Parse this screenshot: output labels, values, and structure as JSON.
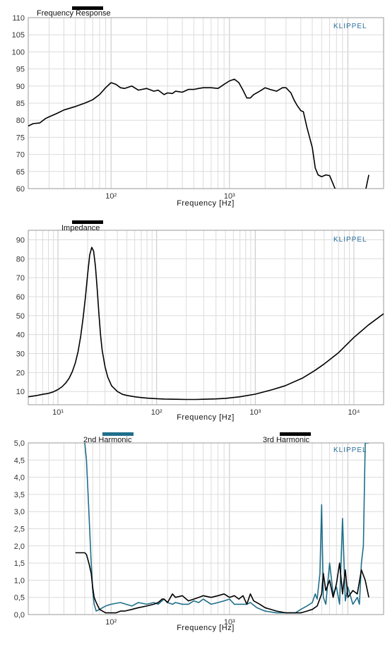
{
  "chart_data": [
    {
      "type": "line",
      "title": "Frequency Response",
      "brand": "KLIPPEL",
      "xlabel": "Frequency [Hz]",
      "ylabel": "",
      "xscale": "log",
      "xlim": [
        20,
        20000
      ],
      "ylim": [
        60,
        110
      ],
      "yticks": [
        "60",
        "65",
        "70",
        "75",
        "80",
        "85",
        "90",
        "95",
        "100",
        "105",
        "110"
      ],
      "xticks": [
        {
          "v": 100,
          "label": "10²"
        },
        {
          "v": 1000,
          "label": "10³"
        }
      ],
      "grid": true,
      "series": [
        {
          "color": "#000000",
          "x": [
            20,
            22,
            25,
            28,
            30,
            35,
            40,
            50,
            60,
            70,
            80,
            90,
            100,
            110,
            120,
            130,
            150,
            170,
            200,
            230,
            250,
            280,
            300,
            330,
            350,
            400,
            450,
            500,
            550,
            600,
            700,
            800,
            900,
            1000,
            1100,
            1200,
            1300,
            1400,
            1500,
            1600,
            1800,
            2000,
            2200,
            2500,
            2800,
            3000,
            3300,
            3500,
            3700,
            4000,
            4200,
            4500,
            5000,
            5300,
            5600,
            6000,
            6500,
            7000,
            8000,
            9000,
            10000,
            11000,
            12000,
            13000,
            14000,
            15000
          ],
          "y": [
            78.3,
            79,
            79.2,
            80.5,
            81,
            82,
            83,
            84,
            85,
            86,
            87.5,
            89.5,
            91,
            90.5,
            89.5,
            89.3,
            90,
            88.8,
            89.3,
            88.5,
            88.8,
            87.5,
            88,
            87.8,
            88.5,
            88.2,
            89,
            89,
            89.3,
            89.5,
            89.5,
            89.3,
            90.5,
            91.5,
            92,
            91,
            88.8,
            86.5,
            86.5,
            87.5,
            88.5,
            89.5,
            89,
            88.5,
            89.5,
            89.5,
            88,
            86,
            84.5,
            82.8,
            82.5,
            78,
            72,
            66,
            64,
            63.5,
            64,
            63.8,
            59,
            59,
            59,
            59,
            59,
            59,
            59,
            64
          ]
        }
      ]
    },
    {
      "type": "line",
      "title": "Impedance",
      "brand": "KLIPPEL",
      "xlabel": "Frequency [Hz]",
      "ylabel": "",
      "xscale": "log",
      "xlim": [
        5,
        20000
      ],
      "ylim": [
        3,
        95
      ],
      "yticks": [
        "10",
        "20",
        "30",
        "40",
        "50",
        "60",
        "70",
        "80",
        "90"
      ],
      "xticks": [
        {
          "v": 10,
          "label": "10¹"
        },
        {
          "v": 100,
          "label": "10²"
        },
        {
          "v": 1000,
          "label": "10³"
        },
        {
          "v": 10000,
          "label": "10⁴"
        }
      ],
      "grid": true,
      "series": [
        {
          "color": "#000000",
          "x": [
            5,
            6,
            7,
            8,
            9,
            10,
            11,
            12,
            13,
            14,
            15,
            16,
            17,
            18,
            19,
            20,
            21,
            22,
            23,
            24,
            25,
            26,
            27,
            28,
            30,
            32,
            35,
            40,
            45,
            50,
            60,
            70,
            80,
            100,
            120,
            150,
            200,
            250,
            300,
            400,
            500,
            700,
            1000,
            1500,
            2000,
            3000,
            4000,
            5000,
            7000,
            10000,
            14000,
            20000
          ],
          "y": [
            7.2,
            7.8,
            8.5,
            9,
            9.8,
            11,
            12.5,
            14.5,
            17,
            20.5,
            25,
            31,
            39,
            49,
            60,
            72,
            82,
            86,
            84,
            76,
            64,
            51,
            40,
            32,
            23,
            17.5,
            13,
            10,
            8.5,
            7.9,
            7.2,
            6.8,
            6.5,
            6.2,
            6,
            5.9,
            5.8,
            5.8,
            5.9,
            6.1,
            6.4,
            7.2,
            8.6,
            11,
            13,
            17,
            21,
            24.5,
            30.5,
            38.5,
            45,
            51
          ]
        }
      ]
    },
    {
      "type": "line",
      "title": "",
      "brand": "KLIPPEL",
      "xlabel": "Frequency [Hz]",
      "ylabel": "",
      "xscale": "log",
      "xlim": [
        20,
        20000
      ],
      "ylim": [
        0,
        5
      ],
      "yticks": [
        "0,0",
        "0,5",
        "1,0",
        "1,5",
        "2,0",
        "2,5",
        "3,0",
        "3,5",
        "4,0",
        "4,5",
        "5,0"
      ],
      "xticks": [
        {
          "v": 100,
          "label": "10²"
        },
        {
          "v": 1000,
          "label": "10³"
        }
      ],
      "grid": true,
      "series": [
        {
          "name": "2nd Harmonic",
          "color": "#1f6f8b",
          "x": [
            60,
            62,
            64,
            66,
            68,
            70,
            72,
            75,
            80,
            90,
            100,
            120,
            150,
            170,
            200,
            230,
            250,
            280,
            300,
            330,
            350,
            400,
            450,
            500,
            550,
            600,
            700,
            800,
            900,
            1000,
            1100,
            1200,
            1400,
            1500,
            1700,
            2000,
            2500,
            3000,
            3300,
            3600,
            4000,
            4500,
            5000,
            5300,
            5500,
            5800,
            6000,
            6200,
            6500,
            7000,
            7500,
            8000,
            8500,
            9000,
            9500,
            10000,
            11000,
            12000,
            12500,
            13000,
            13500,
            14000,
            15000
          ],
          "y": [
            5,
            4.5,
            3.5,
            2.5,
            1.5,
            0.7,
            0.3,
            0.1,
            0.15,
            0.25,
            0.3,
            0.35,
            0.25,
            0.35,
            0.3,
            0.35,
            0.3,
            0.45,
            0.35,
            0.3,
            0.35,
            0.3,
            0.3,
            0.4,
            0.35,
            0.45,
            0.3,
            0.35,
            0.4,
            0.45,
            0.3,
            0.3,
            0.3,
            0.35,
            0.2,
            0.1,
            0.05,
            0.05,
            0.05,
            0.05,
            0.15,
            0.25,
            0.35,
            0.6,
            0.45,
            1.2,
            3.2,
            0.5,
            0.3,
            1.5,
            0.6,
            0.8,
            0.3,
            2.8,
            0.4,
            0.8,
            0.3,
            0.5,
            0.3,
            1.5,
            2,
            5,
            5
          ]
        },
        {
          "name": "3rd Harmonic",
          "color": "#000000",
          "x": [
            50,
            55,
            60,
            62,
            65,
            68,
            70,
            72,
            75,
            80,
            90,
            100,
            110,
            120,
            130,
            150,
            170,
            200,
            230,
            250,
            270,
            280,
            300,
            330,
            350,
            400,
            450,
            500,
            550,
            600,
            700,
            800,
            900,
            1000,
            1100,
            1200,
            1300,
            1400,
            1500,
            1600,
            1800,
            2000,
            2500,
            3000,
            3500,
            4000,
            4500,
            5000,
            5500,
            6000,
            6200,
            6500,
            7000,
            7500,
            8000,
            8500,
            9000,
            9500,
            10000,
            11000,
            12000,
            13000,
            14000,
            15000
          ],
          "y": [
            1.8,
            1.8,
            1.8,
            1.75,
            1.5,
            1.2,
            0.8,
            0.5,
            0.35,
            0.15,
            0.05,
            0.05,
            0.05,
            0.1,
            0.1,
            0.15,
            0.2,
            0.25,
            0.3,
            0.35,
            0.45,
            0.45,
            0.35,
            0.6,
            0.5,
            0.55,
            0.4,
            0.45,
            0.5,
            0.55,
            0.5,
            0.55,
            0.6,
            0.5,
            0.55,
            0.45,
            0.55,
            0.3,
            0.6,
            0.4,
            0.3,
            0.2,
            0.1,
            0.05,
            0.05,
            0.05,
            0.1,
            0.15,
            0.25,
            0.6,
            1.2,
            0.7,
            1.0,
            0.5,
            0.9,
            1.5,
            0.6,
            1.3,
            0.5,
            0.7,
            0.6,
            1.3,
            1.0,
            0.5
          ]
        }
      ]
    }
  ]
}
